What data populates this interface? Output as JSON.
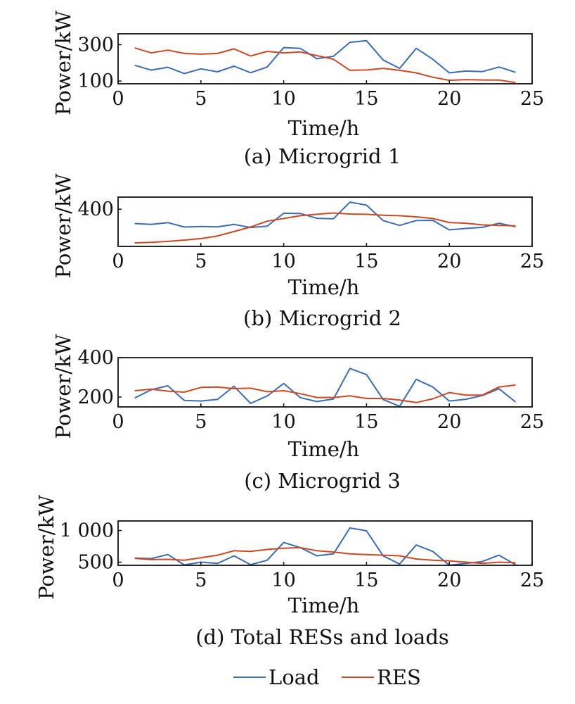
{
  "legend": [
    {
      "name": "Load",
      "color": "#3b6db5"
    },
    {
      "name": "RES",
      "color": "#cc4a23"
    }
  ],
  "chart_data": [
    {
      "type": "line",
      "caption": "(a) Microgrid 1",
      "xlabel": "Time/h",
      "ylabel": "Power/kW",
      "xlim": [
        0,
        25
      ],
      "ylim": [
        85,
        360
      ],
      "xticks": [
        0,
        5,
        10,
        15,
        20,
        25
      ],
      "yticks": [
        100,
        300
      ],
      "ytick_labels": [
        "100",
        "300"
      ],
      "x": [
        1,
        2,
        3,
        4,
        5,
        6,
        7,
        8,
        9,
        10,
        11,
        12,
        13,
        14,
        15,
        16,
        17,
        18,
        19,
        20,
        21,
        22,
        23,
        24
      ],
      "series": [
        {
          "name": "Load",
          "values": [
            187,
            160,
            176,
            141,
            167,
            151,
            182,
            146,
            177,
            284,
            280,
            223,
            236,
            313,
            322,
            216,
            170,
            280,
            220,
            145,
            155,
            152,
            177,
            148
          ]
        },
        {
          "name": "RES",
          "values": [
            282,
            255,
            270,
            252,
            248,
            252,
            277,
            238,
            263,
            255,
            260,
            240,
            220,
            159,
            161,
            170,
            159,
            145,
            121,
            104,
            108,
            106,
            105,
            92
          ]
        }
      ]
    },
    {
      "type": "line",
      "caption": "(b) Microgrid 2",
      "xlabel": "Time/h",
      "ylabel": "Power/kW",
      "xlim": [
        0,
        25
      ],
      "ylim": [
        0,
        530
      ],
      "xticks": [
        0,
        5,
        10,
        15,
        20,
        25
      ],
      "yticks": [
        400
      ],
      "ytick_labels": [
        "400"
      ],
      "x": [
        1,
        2,
        3,
        4,
        5,
        6,
        7,
        8,
        9,
        10,
        11,
        12,
        13,
        14,
        15,
        16,
        17,
        18,
        19,
        20,
        21,
        22,
        23,
        24
      ],
      "series": [
        {
          "name": "Load",
          "values": [
            246,
            237,
            256,
            208,
            214,
            210,
            236,
            204,
            217,
            356,
            354,
            302,
            297,
            476,
            444,
            278,
            226,
            278,
            280,
            178,
            193,
            205,
            249,
            212
          ]
        },
        {
          "name": "RES",
          "values": [
            38,
            43,
            54,
            68,
            84,
            112,
            160,
            209,
            271,
            300,
            330,
            345,
            360,
            348,
            345,
            335,
            330,
            318,
            300,
            257,
            249,
            232,
            225,
            222
          ]
        }
      ]
    },
    {
      "type": "line",
      "caption": "(c) Microgrid 3",
      "xlabel": "Time/h",
      "ylabel": "Power/kW",
      "xlim": [
        0,
        25
      ],
      "ylim": [
        150,
        400
      ],
      "xticks": [
        0,
        5,
        10,
        15,
        20,
        25
      ],
      "yticks": [
        200,
        400
      ],
      "ytick_labels": [
        "200",
        "400"
      ],
      "x": [
        1,
        2,
        3,
        4,
        5,
        6,
        7,
        8,
        9,
        10,
        11,
        12,
        13,
        14,
        15,
        16,
        17,
        18,
        19,
        20,
        21,
        22,
        23,
        24
      ],
      "series": [
        {
          "name": "Load",
          "values": [
            195,
            237,
            257,
            183,
            180,
            188,
            255,
            168,
            205,
            269,
            197,
            177,
            190,
            345,
            314,
            188,
            153,
            290,
            251,
            180,
            189,
            208,
            242,
            175
          ]
        },
        {
          "name": "RES",
          "values": [
            232,
            240,
            230,
            225,
            249,
            251,
            243,
            245,
            227,
            232,
            217,
            198,
            198,
            206,
            193,
            193,
            185,
            172,
            191,
            223,
            210,
            210,
            251,
            261
          ]
        }
      ]
    },
    {
      "type": "line",
      "caption": "(d) Total RESs and loads",
      "xlabel": "Time/h",
      "ylabel": "Power/kW",
      "xlim": [
        0,
        25
      ],
      "ylim": [
        450,
        1150
      ],
      "xticks": [
        0,
        5,
        10,
        15,
        20,
        25
      ],
      "yticks": [
        500,
        1000
      ],
      "ytick_labels": [
        "500",
        "1 000"
      ],
      "x": [
        1,
        2,
        3,
        4,
        5,
        6,
        7,
        8,
        9,
        10,
        11,
        12,
        13,
        14,
        15,
        16,
        17,
        18,
        19,
        20,
        21,
        22,
        23,
        24
      ],
      "series": [
        {
          "name": "Load",
          "values": [
            565,
            555,
            620,
            455,
            500,
            480,
            600,
            460,
            530,
            810,
            730,
            600,
            630,
            1040,
            995,
            600,
            470,
            770,
            670,
            450,
            480,
            510,
            610,
            460
          ]
        },
        {
          "name": "RES",
          "values": [
            560,
            540,
            545,
            530,
            570,
            610,
            680,
            670,
            700,
            720,
            730,
            680,
            660,
            630,
            620,
            610,
            600,
            550,
            530,
            520,
            500,
            480,
            500,
            490
          ]
        }
      ]
    }
  ]
}
